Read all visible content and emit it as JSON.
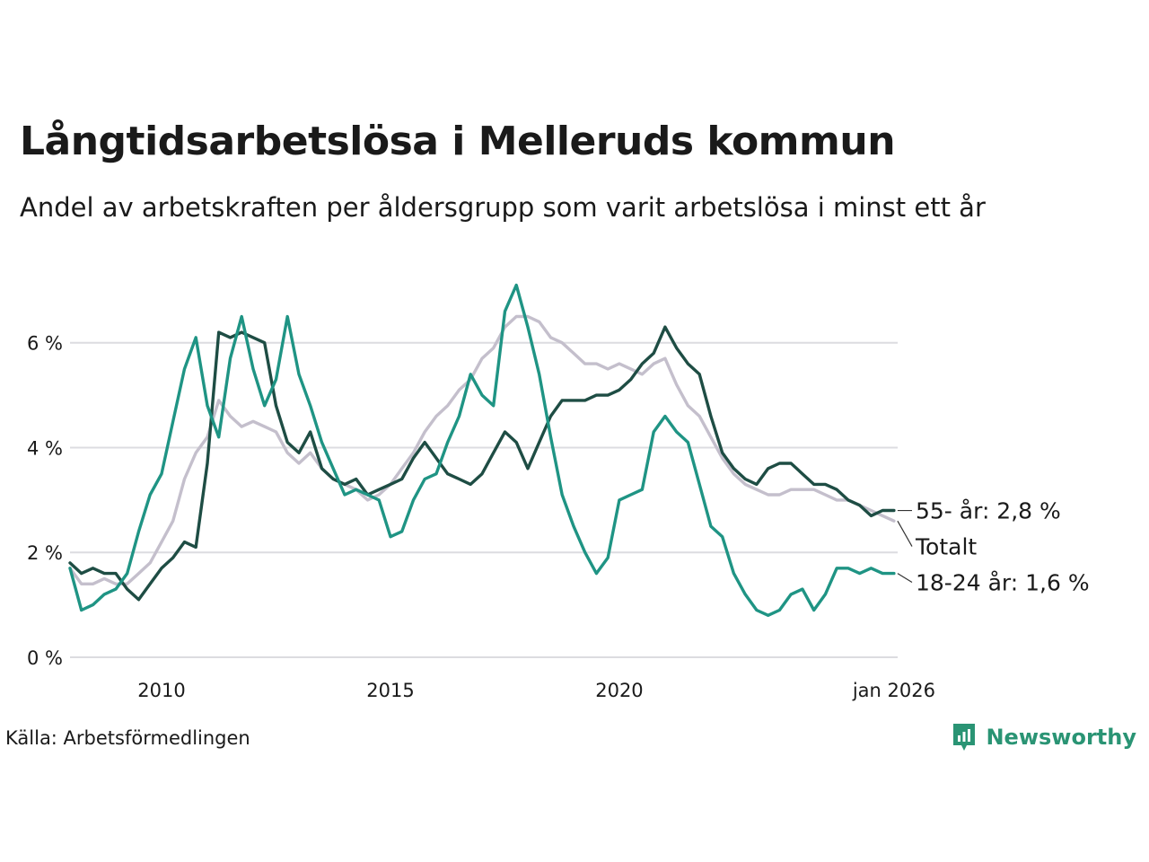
{
  "title": "Långtidsarbetslösa i Melleruds kommun",
  "subtitle": "Andel av arbetskraften per åldersgrupp som varit arbetslösa i minst ett år",
  "source": "Källa: Arbetsförmedlingen",
  "brand": "Newsworthy",
  "chart_data": {
    "type": "line",
    "title": "Långtidsarbetslösa i Melleruds kommun",
    "xlabel": "",
    "ylabel": "",
    "xlim": [
      2008.0,
      2026.08
    ],
    "ylim": [
      0,
      7.4
    ],
    "y_ticks": [
      {
        "value": 0,
        "label": "0 %"
      },
      {
        "value": 2,
        "label": "2 %"
      },
      {
        "value": 4,
        "label": "4 %"
      },
      {
        "value": 6,
        "label": "6 %"
      }
    ],
    "x_ticks": [
      {
        "value": 2010,
        "label": "2010"
      },
      {
        "value": 2015,
        "label": "2015"
      },
      {
        "value": 2020,
        "label": "2020"
      },
      {
        "value": 2026.0,
        "label": "jan 2026"
      }
    ],
    "grid": true,
    "series": [
      {
        "name": "Totalt",
        "color": "#c4bfcc",
        "label": "Totalt",
        "points": [
          [
            2008.0,
            1.7
          ],
          [
            2008.25,
            1.4
          ],
          [
            2008.5,
            1.4
          ],
          [
            2008.75,
            1.5
          ],
          [
            2009.0,
            1.4
          ],
          [
            2009.25,
            1.4
          ],
          [
            2009.5,
            1.6
          ],
          [
            2009.75,
            1.8
          ],
          [
            2010.0,
            2.2
          ],
          [
            2010.25,
            2.6
          ],
          [
            2010.5,
            3.4
          ],
          [
            2010.75,
            3.9
          ],
          [
            2011.0,
            4.2
          ],
          [
            2011.25,
            4.9
          ],
          [
            2011.5,
            4.6
          ],
          [
            2011.75,
            4.4
          ],
          [
            2012.0,
            4.5
          ],
          [
            2012.25,
            4.4
          ],
          [
            2012.5,
            4.3
          ],
          [
            2012.75,
            3.9
          ],
          [
            2013.0,
            3.7
          ],
          [
            2013.25,
            3.9
          ],
          [
            2013.5,
            3.6
          ],
          [
            2013.75,
            3.4
          ],
          [
            2014.0,
            3.3
          ],
          [
            2014.25,
            3.2
          ],
          [
            2014.5,
            3.0
          ],
          [
            2014.75,
            3.1
          ],
          [
            2015.0,
            3.3
          ],
          [
            2015.25,
            3.6
          ],
          [
            2015.5,
            3.9
          ],
          [
            2015.75,
            4.3
          ],
          [
            2016.0,
            4.6
          ],
          [
            2016.25,
            4.8
          ],
          [
            2016.5,
            5.1
          ],
          [
            2016.75,
            5.3
          ],
          [
            2017.0,
            5.7
          ],
          [
            2017.25,
            5.9
          ],
          [
            2017.5,
            6.3
          ],
          [
            2017.75,
            6.5
          ],
          [
            2018.0,
            6.5
          ],
          [
            2018.25,
            6.4
          ],
          [
            2018.5,
            6.1
          ],
          [
            2018.75,
            6.0
          ],
          [
            2019.0,
            5.8
          ],
          [
            2019.25,
            5.6
          ],
          [
            2019.5,
            5.6
          ],
          [
            2019.75,
            5.5
          ],
          [
            2020.0,
            5.6
          ],
          [
            2020.25,
            5.5
          ],
          [
            2020.5,
            5.4
          ],
          [
            2020.75,
            5.6
          ],
          [
            2021.0,
            5.7
          ],
          [
            2021.25,
            5.2
          ],
          [
            2021.5,
            4.8
          ],
          [
            2021.75,
            4.6
          ],
          [
            2022.0,
            4.2
          ],
          [
            2022.25,
            3.8
          ],
          [
            2022.5,
            3.5
          ],
          [
            2022.75,
            3.3
          ],
          [
            2023.0,
            3.2
          ],
          [
            2023.25,
            3.1
          ],
          [
            2023.5,
            3.1
          ],
          [
            2023.75,
            3.2
          ],
          [
            2024.0,
            3.2
          ],
          [
            2024.25,
            3.2
          ],
          [
            2024.5,
            3.1
          ],
          [
            2024.75,
            3.0
          ],
          [
            2025.0,
            3.0
          ],
          [
            2025.25,
            2.9
          ],
          [
            2025.5,
            2.8
          ],
          [
            2025.75,
            2.7
          ],
          [
            2026.0,
            2.6
          ]
        ]
      },
      {
        "name": "55- år",
        "color": "#1e4d44",
        "label": "55- år: 2,8 %",
        "points": [
          [
            2008.0,
            1.8
          ],
          [
            2008.25,
            1.6
          ],
          [
            2008.5,
            1.7
          ],
          [
            2008.75,
            1.6
          ],
          [
            2009.0,
            1.6
          ],
          [
            2009.25,
            1.3
          ],
          [
            2009.5,
            1.1
          ],
          [
            2009.75,
            1.4
          ],
          [
            2010.0,
            1.7
          ],
          [
            2010.25,
            1.9
          ],
          [
            2010.5,
            2.2
          ],
          [
            2010.75,
            2.1
          ],
          [
            2011.0,
            3.7
          ],
          [
            2011.25,
            6.2
          ],
          [
            2011.5,
            6.1
          ],
          [
            2011.75,
            6.2
          ],
          [
            2012.0,
            6.1
          ],
          [
            2012.25,
            6.0
          ],
          [
            2012.5,
            4.8
          ],
          [
            2012.75,
            4.1
          ],
          [
            2013.0,
            3.9
          ],
          [
            2013.25,
            4.3
          ],
          [
            2013.5,
            3.6
          ],
          [
            2013.75,
            3.4
          ],
          [
            2014.0,
            3.3
          ],
          [
            2014.25,
            3.4
          ],
          [
            2014.5,
            3.1
          ],
          [
            2014.75,
            3.2
          ],
          [
            2015.0,
            3.3
          ],
          [
            2015.25,
            3.4
          ],
          [
            2015.5,
            3.8
          ],
          [
            2015.75,
            4.1
          ],
          [
            2016.0,
            3.8
          ],
          [
            2016.25,
            3.5
          ],
          [
            2016.5,
            3.4
          ],
          [
            2016.75,
            3.3
          ],
          [
            2017.0,
            3.5
          ],
          [
            2017.25,
            3.9
          ],
          [
            2017.5,
            4.3
          ],
          [
            2017.75,
            4.1
          ],
          [
            2018.0,
            3.6
          ],
          [
            2018.25,
            4.1
          ],
          [
            2018.5,
            4.6
          ],
          [
            2018.75,
            4.9
          ],
          [
            2019.0,
            4.9
          ],
          [
            2019.25,
            4.9
          ],
          [
            2019.5,
            5.0
          ],
          [
            2019.75,
            5.0
          ],
          [
            2020.0,
            5.1
          ],
          [
            2020.25,
            5.3
          ],
          [
            2020.5,
            5.6
          ],
          [
            2020.75,
            5.8
          ],
          [
            2021.0,
            6.3
          ],
          [
            2021.25,
            5.9
          ],
          [
            2021.5,
            5.6
          ],
          [
            2021.75,
            5.4
          ],
          [
            2022.0,
            4.6
          ],
          [
            2022.25,
            3.9
          ],
          [
            2022.5,
            3.6
          ],
          [
            2022.75,
            3.4
          ],
          [
            2023.0,
            3.3
          ],
          [
            2023.25,
            3.6
          ],
          [
            2023.5,
            3.7
          ],
          [
            2023.75,
            3.7
          ],
          [
            2024.0,
            3.5
          ],
          [
            2024.25,
            3.3
          ],
          [
            2024.5,
            3.3
          ],
          [
            2024.75,
            3.2
          ],
          [
            2025.0,
            3.0
          ],
          [
            2025.25,
            2.9
          ],
          [
            2025.5,
            2.7
          ],
          [
            2025.75,
            2.8
          ],
          [
            2026.0,
            2.8
          ]
        ]
      },
      {
        "name": "18-24 år",
        "color": "#1f9484",
        "label": "18-24 år: 1,6 %",
        "points": [
          [
            2008.0,
            1.7
          ],
          [
            2008.25,
            0.9
          ],
          [
            2008.5,
            1.0
          ],
          [
            2008.75,
            1.2
          ],
          [
            2009.0,
            1.3
          ],
          [
            2009.25,
            1.6
          ],
          [
            2009.5,
            2.4
          ],
          [
            2009.75,
            3.1
          ],
          [
            2010.0,
            3.5
          ],
          [
            2010.25,
            4.5
          ],
          [
            2010.5,
            5.5
          ],
          [
            2010.75,
            6.1
          ],
          [
            2011.0,
            4.8
          ],
          [
            2011.25,
            4.2
          ],
          [
            2011.5,
            5.7
          ],
          [
            2011.75,
            6.5
          ],
          [
            2012.0,
            5.5
          ],
          [
            2012.25,
            4.8
          ],
          [
            2012.5,
            5.3
          ],
          [
            2012.75,
            6.5
          ],
          [
            2013.0,
            5.4
          ],
          [
            2013.25,
            4.8
          ],
          [
            2013.5,
            4.1
          ],
          [
            2013.75,
            3.6
          ],
          [
            2014.0,
            3.1
          ],
          [
            2014.25,
            3.2
          ],
          [
            2014.5,
            3.1
          ],
          [
            2014.75,
            3.0
          ],
          [
            2015.0,
            2.3
          ],
          [
            2015.25,
            2.4
          ],
          [
            2015.5,
            3.0
          ],
          [
            2015.75,
            3.4
          ],
          [
            2016.0,
            3.5
          ],
          [
            2016.25,
            4.1
          ],
          [
            2016.5,
            4.6
          ],
          [
            2016.75,
            5.4
          ],
          [
            2017.0,
            5.0
          ],
          [
            2017.25,
            4.8
          ],
          [
            2017.5,
            6.6
          ],
          [
            2017.75,
            7.1
          ],
          [
            2018.0,
            6.3
          ],
          [
            2018.25,
            5.4
          ],
          [
            2018.5,
            4.2
          ],
          [
            2018.75,
            3.1
          ],
          [
            2019.0,
            2.5
          ],
          [
            2019.25,
            2.0
          ],
          [
            2019.5,
            1.6
          ],
          [
            2019.75,
            1.9
          ],
          [
            2020.0,
            3.0
          ],
          [
            2020.25,
            3.1
          ],
          [
            2020.5,
            3.2
          ],
          [
            2020.75,
            4.3
          ],
          [
            2021.0,
            4.6
          ],
          [
            2021.25,
            4.3
          ],
          [
            2021.5,
            4.1
          ],
          [
            2021.75,
            3.3
          ],
          [
            2022.0,
            2.5
          ],
          [
            2022.25,
            2.3
          ],
          [
            2022.5,
            1.6
          ],
          [
            2022.75,
            1.2
          ],
          [
            2023.0,
            0.9
          ],
          [
            2023.25,
            0.8
          ],
          [
            2023.5,
            0.9
          ],
          [
            2023.75,
            1.2
          ],
          [
            2024.0,
            1.3
          ],
          [
            2024.25,
            0.9
          ],
          [
            2024.5,
            1.2
          ],
          [
            2024.75,
            1.7
          ],
          [
            2025.0,
            1.7
          ],
          [
            2025.25,
            1.6
          ],
          [
            2025.5,
            1.7
          ],
          [
            2025.75,
            1.6
          ],
          [
            2026.0,
            1.6
          ]
        ]
      }
    ]
  }
}
